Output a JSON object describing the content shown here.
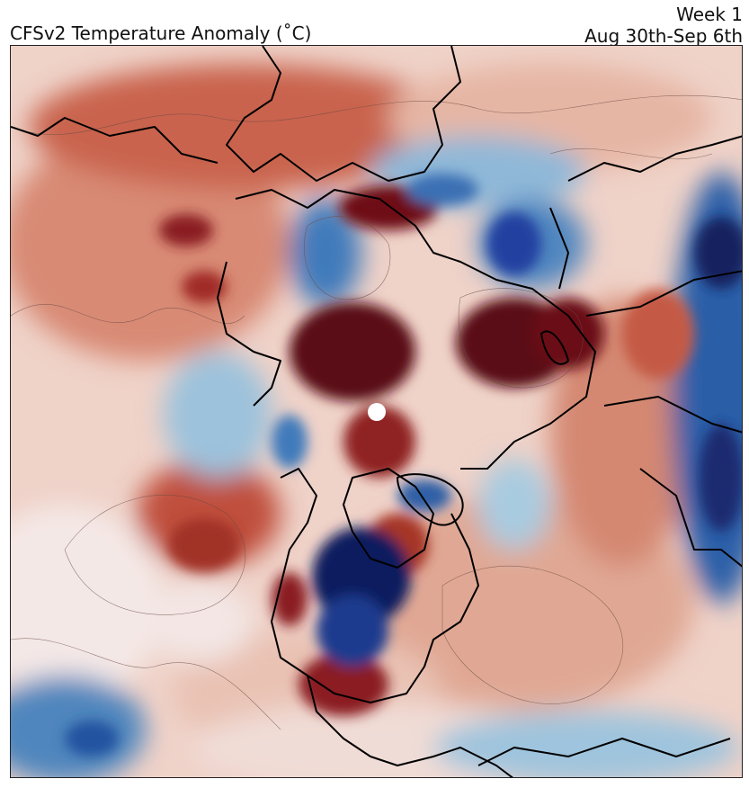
{
  "header": {
    "title": "CFSv2 Temperature Anomaly (˚C)",
    "week_label": "Week 1",
    "date_range": "Aug 30th-Sep 6th"
  },
  "map": {
    "projection": "north-polar-stereographic",
    "field": "temperature anomaly",
    "colormap": {
      "warm_dark": "#4a0a12",
      "warm_mid": "#b23a2a",
      "warm_light": "#e8a890",
      "neutral": "#f6ecea",
      "cool_light": "#b9d6e6",
      "cool_mid": "#3a7fb8",
      "cool_dark": "#0f1f6a"
    },
    "coastline_color": "#000000",
    "pole_marker_color": "#ffffff"
  }
}
